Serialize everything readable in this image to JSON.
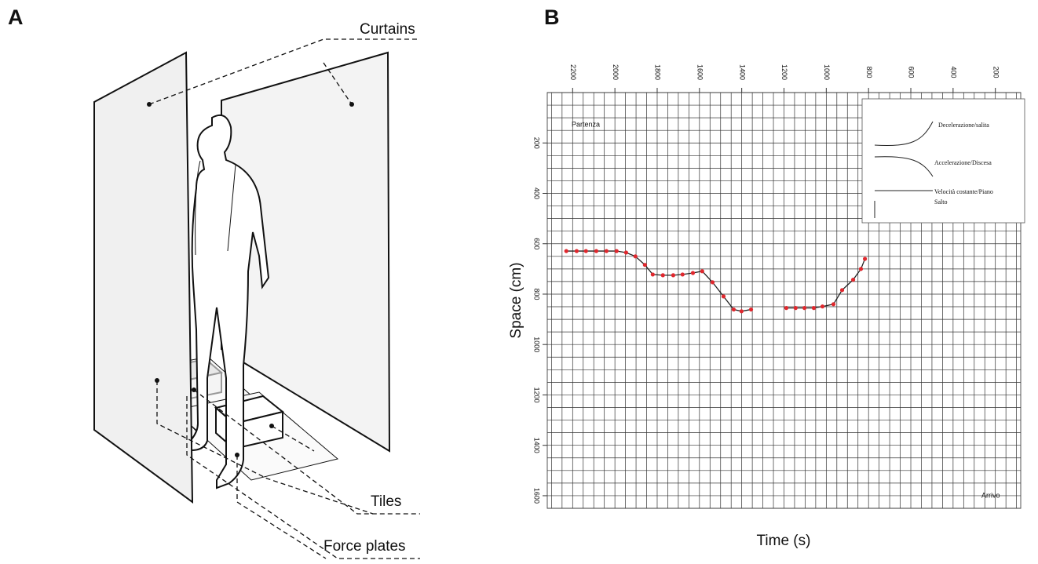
{
  "panel_a": {
    "letter": "A",
    "labels": [
      "Curtains",
      "Tiles",
      "Force plates"
    ]
  },
  "chart_data": {
    "type": "line",
    "panel_letter": "B",
    "x_label": "Time (s)",
    "y_label": "Space (cm)",
    "start_label": "Partenza",
    "end_label": "Arrivo",
    "legend_items": [
      "Decelerazione/salita",
      "Accelerazione/Discesa",
      "Velocità costante/Piano",
      "Salto"
    ],
    "x": [
      2230,
      2181,
      2137,
      2088,
      2040,
      1992,
      1947,
      1903,
      1858,
      1821,
      1773,
      1724,
      1680,
      1631,
      1587,
      1538,
      1486,
      1438,
      1401,
      1356,
      null,
      1189,
      1145,
      1103,
      1059,
      1018,
      966,
      925,
      873,
      836,
      817
    ],
    "values": [
      629,
      629,
      629,
      629,
      629,
      629,
      635,
      650,
      684,
      722,
      725,
      725,
      722,
      716,
      709,
      753,
      809,
      861,
      868,
      861,
      null,
      855,
      855,
      855,
      855,
      849,
      840,
      784,
      743,
      700,
      660
    ],
    "color": "#e0282e",
    "line_color": "#222222",
    "xlim": [
      2320,
      80
    ],
    "ylim": [
      0,
      1650
    ],
    "y_inverted": true,
    "xticks": [
      2200,
      2000,
      1800,
      1600,
      1400,
      1200,
      1000,
      800,
      600,
      400,
      200
    ],
    "yticks": [
      200,
      400,
      600,
      800,
      1000,
      1200,
      1400,
      1600
    ],
    "grid": true,
    "grid_step": 50
  }
}
